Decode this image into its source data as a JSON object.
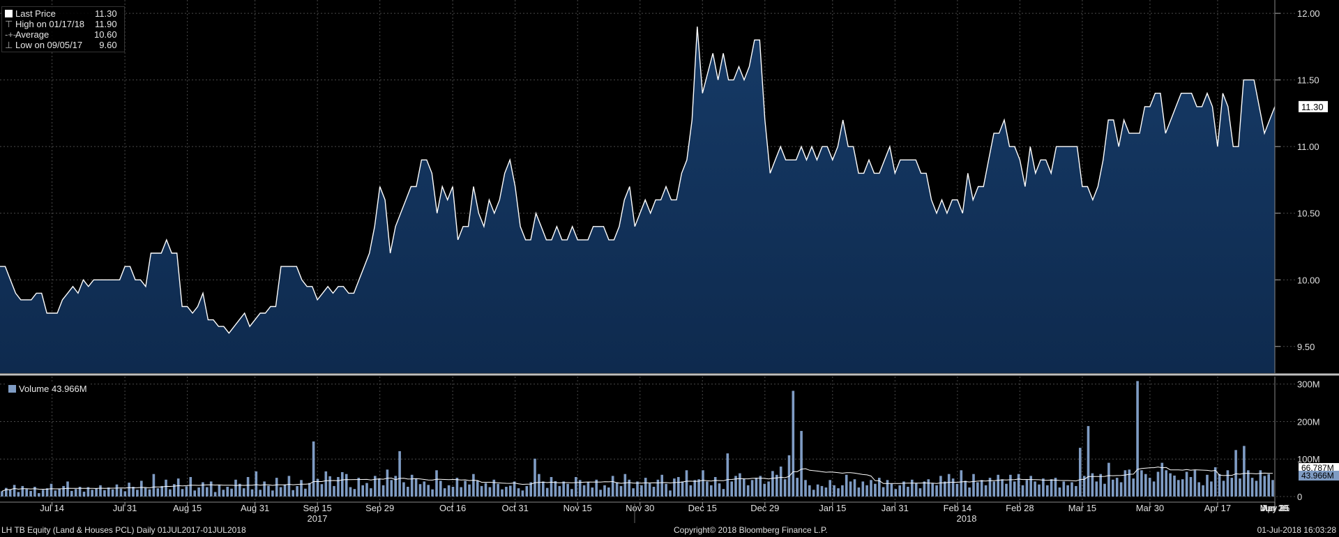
{
  "colors": {
    "background": "#000000",
    "price_fill": "#0e2a4e",
    "price_line": "#ffffff",
    "volume_bar": "#7f9cc4",
    "grid": "#4a4a4a"
  },
  "price_legend": {
    "rows": [
      {
        "label": "Last Price",
        "value": "11.30"
      },
      {
        "label": "High on 01/17/18",
        "value": "11.90"
      },
      {
        "label": "Average",
        "value": "10.60"
      },
      {
        "label": "Low on 09/05/17",
        "value": "9.60"
      }
    ]
  },
  "volume_legend": {
    "label": "Volume",
    "value": "43.966M"
  },
  "footer": {
    "left": "LH TB Equity (Land & Houses PCL)  Daily 01JUL2017-01JUL2018",
    "center": "Copyright© 2018 Bloomberg Finance L.P.",
    "right": "01-Jul-2018 16:03:28"
  },
  "chart_data": [
    {
      "type": "area",
      "series_name": "Last Price",
      "ylim": [
        9.3,
        12.1
      ],
      "y_ticks": [
        "9.50",
        "10.00",
        "10.50",
        "11.00",
        "11.50",
        "12.00"
      ],
      "last_value_label": "11.30",
      "x_ticks": [
        "Jul 14",
        "Jul 31",
        "Aug 15",
        "Aug 31",
        "Sep 15",
        "Sep 29",
        "Oct 16",
        "Oct 31",
        "Nov 15",
        "Nov 30",
        "Dec 15",
        "Dec 29",
        "Jan 15",
        "Jan 31",
        "Feb 14",
        "Feb 28",
        "Mar 15",
        "Mar 30",
        "Apr 17",
        "Apr 30",
        "May 15",
        "May 31",
        "Jun 15",
        "Jun 29"
      ],
      "year_labels": [
        "2017",
        "2018"
      ],
      "values": [
        10.1,
        10.1,
        10.0,
        9.9,
        9.85,
        9.85,
        9.85,
        9.9,
        9.9,
        9.75,
        9.75,
        9.75,
        9.85,
        9.9,
        9.95,
        9.9,
        10.0,
        9.95,
        10.0,
        10.0,
        10.0,
        10.0,
        10.0,
        10.0,
        10.1,
        10.1,
        10.0,
        10.0,
        9.95,
        10.2,
        10.2,
        10.2,
        10.3,
        10.2,
        10.2,
        9.8,
        9.8,
        9.75,
        9.8,
        9.9,
        9.7,
        9.7,
        9.65,
        9.65,
        9.6,
        9.65,
        9.7,
        9.75,
        9.65,
        9.7,
        9.75,
        9.75,
        9.8,
        9.8,
        10.1,
        10.1,
        10.1,
        10.1,
        10.0,
        9.95,
        9.95,
        9.85,
        9.9,
        9.95,
        9.9,
        9.95,
        9.95,
        9.9,
        9.9,
        10.0,
        10.1,
        10.2,
        10.4,
        10.7,
        10.6,
        10.2,
        10.4,
        10.5,
        10.6,
        10.7,
        10.7,
        10.9,
        10.9,
        10.8,
        10.5,
        10.7,
        10.6,
        10.7,
        10.3,
        10.4,
        10.4,
        10.7,
        10.5,
        10.4,
        10.6,
        10.5,
        10.6,
        10.8,
        10.9,
        10.7,
        10.4,
        10.3,
        10.3,
        10.5,
        10.4,
        10.3,
        10.3,
        10.4,
        10.3,
        10.3,
        10.4,
        10.3,
        10.3,
        10.3,
        10.4,
        10.4,
        10.4,
        10.3,
        10.3,
        10.4,
        10.6,
        10.7,
        10.4,
        10.5,
        10.6,
        10.5,
        10.6,
        10.6,
        10.7,
        10.6,
        10.6,
        10.8,
        10.9,
        11.2,
        11.9,
        11.4,
        11.55,
        11.7,
        11.5,
        11.7,
        11.5,
        11.5,
        11.6,
        11.5,
        11.6,
        11.8,
        11.8,
        11.2,
        10.8,
        10.9,
        11.0,
        10.9,
        10.9,
        10.9,
        11.0,
        10.9,
        11.0,
        10.9,
        11.0,
        11.0,
        10.9,
        11.0,
        11.2,
        11.0,
        11.0,
        10.8,
        10.8,
        10.9,
        10.8,
        10.8,
        10.9,
        11.0,
        10.8,
        10.9,
        10.9,
        10.9,
        10.9,
        10.8,
        10.8,
        10.6,
        10.5,
        10.6,
        10.5,
        10.6,
        10.6,
        10.5,
        10.8,
        10.6,
        10.7,
        10.7,
        10.9,
        11.1,
        11.1,
        11.2,
        11.0,
        11.0,
        10.9,
        10.7,
        11.0,
        10.8,
        10.9,
        10.9,
        10.8,
        11.0,
        11.0,
        11.0,
        11.0,
        11.0,
        10.7,
        10.7,
        10.6,
        10.7,
        10.9,
        11.2,
        11.2,
        11.0,
        11.2,
        11.1,
        11.1,
        11.1,
        11.3,
        11.3,
        11.4,
        11.4,
        11.1,
        11.2,
        11.3,
        11.4,
        11.4,
        11.4,
        11.3,
        11.3,
        11.4,
        11.3,
        11.0,
        11.4,
        11.3,
        11.0,
        11.0,
        11.5,
        11.5,
        11.5,
        11.3,
        11.1,
        11.2,
        11.3
      ]
    },
    {
      "type": "bar",
      "series_name": "Volume",
      "ylim": [
        -15,
        320
      ],
      "y_ticks": [
        "0",
        "100M",
        "200M",
        "300M"
      ],
      "last_value_labels": [
        "66.787M",
        "43.966M"
      ],
      "values": [
        14,
        23,
        18,
        31,
        12,
        28,
        20,
        15,
        26,
        9,
        18,
        22,
        34,
        16,
        21,
        28,
        40,
        15,
        20,
        26,
        13,
        25,
        18,
        22,
        30,
        17,
        24,
        19,
        32,
        21,
        14,
        37,
        26,
        18,
        42,
        23,
        19,
        60,
        22,
        28,
        45,
        19,
        33,
        48,
        20,
        27,
        52,
        16,
        24,
        38,
        25,
        40,
        12,
        30,
        18,
        26,
        21,
        45,
        34,
        22,
        52,
        19,
        67,
        18,
        40,
        29,
        16,
        50,
        25,
        32,
        55,
        17,
        28,
        44,
        21,
        36,
        147,
        47,
        33,
        67,
        54,
        28,
        52,
        65,
        60,
        25,
        20,
        50,
        30,
        36,
        22,
        55,
        48,
        30,
        72,
        44,
        55,
        121,
        38,
        26,
        58,
        48,
        33,
        40,
        31,
        19,
        70,
        42,
        22,
        30,
        26,
        50,
        25,
        42,
        32,
        60,
        42,
        28,
        36,
        25,
        45,
        34,
        19,
        26,
        29,
        40,
        22,
        16,
        28,
        38,
        101,
        60,
        40,
        23,
        52,
        41,
        28,
        40,
        34,
        20,
        52,
        44,
        30,
        38,
        24,
        45,
        18,
        30,
        24,
        55,
        38,
        28,
        60,
        45,
        22,
        40,
        30,
        50,
        35,
        26,
        45,
        58,
        34,
        16,
        48,
        52,
        40,
        70,
        30,
        44,
        46,
        70,
        40,
        30,
        52,
        35,
        20,
        115,
        40,
        55,
        62,
        48,
        30,
        44,
        50,
        55,
        34,
        40,
        68,
        58,
        80,
        46,
        110,
        282,
        50,
        175,
        44,
        30,
        18,
        32,
        28,
        24,
        44,
        30,
        22,
        30,
        58,
        40,
        46,
        24,
        40,
        30,
        44,
        34,
        50,
        25,
        44,
        34,
        20,
        30,
        40,
        26,
        45,
        36,
        22,
        40,
        46,
        35,
        30,
        55,
        40,
        60,
        48,
        34,
        70,
        42,
        24,
        60,
        38,
        44,
        30,
        50,
        40,
        58,
        46,
        34,
        58,
        40,
        60,
        30,
        44,
        55,
        40,
        32,
        48,
        30,
        46,
        50,
        24,
        40,
        30,
        38,
        28,
        130,
        55,
        188,
        62,
        40,
        60,
        34,
        90,
        45,
        50,
        38,
        70,
        72,
        48,
        308,
        70,
        60,
        50,
        40,
        66,
        90,
        70,
        62,
        56,
        44,
        46,
        66,
        52,
        70,
        38,
        30,
        58,
        40,
        78,
        60,
        42,
        70,
        50,
        124,
        48,
        135,
        70,
        50,
        42,
        70,
        55,
        60,
        44
      ]
    }
  ]
}
